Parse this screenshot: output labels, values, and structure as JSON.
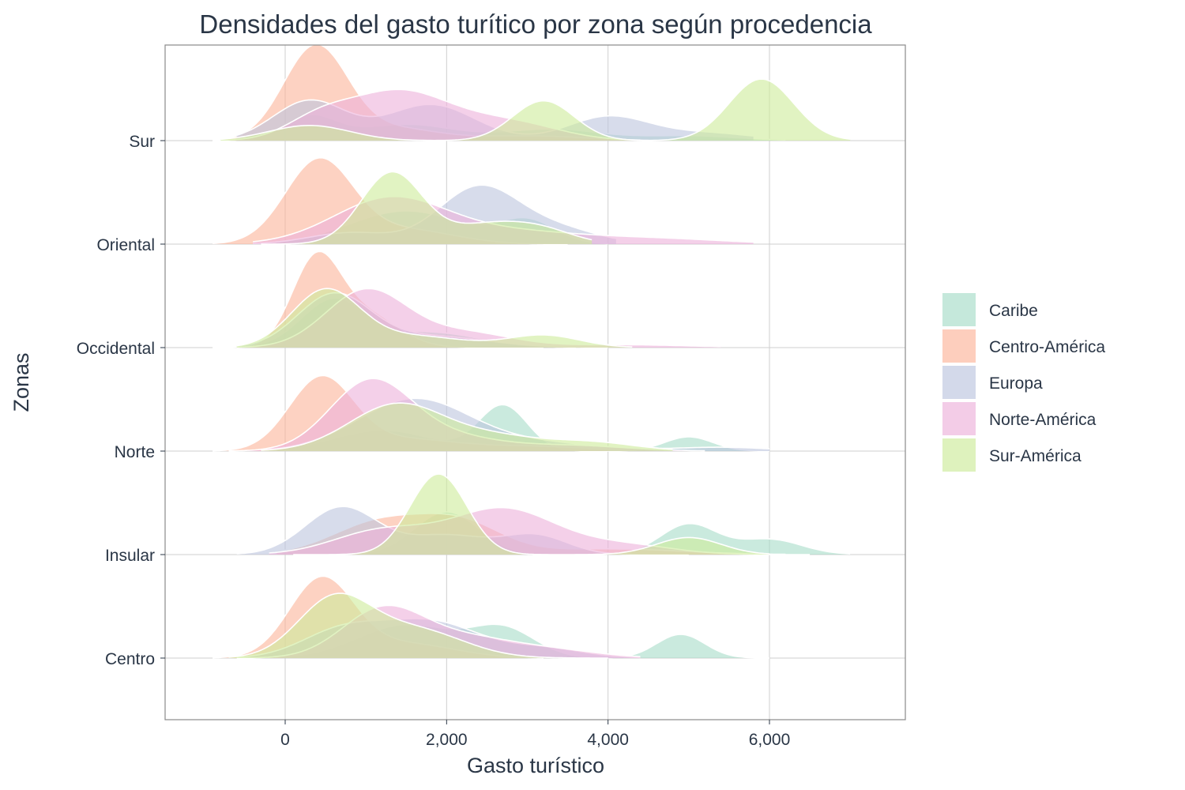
{
  "chart_data": {
    "type": "area",
    "subtype": "ridgeline-density",
    "title": "Densidades del gasto turítico por zona según procedencia",
    "xlabel": "Gasto turístico",
    "ylabel": "Zonas",
    "xlim": [
      -1500,
      7600
    ],
    "xticks": [
      0,
      2000,
      4000,
      6000
    ],
    "xtick_labels": [
      "0",
      "2,000",
      "4,000",
      "6,000"
    ],
    "grid": true,
    "legend_position": "right",
    "zones": [
      "Sur",
      "Oriental",
      "Occidental",
      "Norte",
      "Insular",
      "Centro"
    ],
    "series": [
      {
        "name": "Caribe",
        "color": "#a6dcc8"
      },
      {
        "name": "Centro-América",
        "color": "#fcb49a"
      },
      {
        "name": "Europa",
        "color": "#bcc4de"
      },
      {
        "name": "Norte-América",
        "color": "#edb0da"
      },
      {
        "name": "Sur-América",
        "color": "#cdeb9a"
      }
    ],
    "densities": {
      "Sur": {
        "Caribe": {
          "range": [
            -900,
            6200
          ],
          "peaks": [
            [
              300,
              0.25,
              330
            ],
            [
              1500,
              0.17,
              600
            ],
            [
              3300,
              0.12,
              600
            ],
            [
              5000,
              0.05,
              600
            ]
          ]
        },
        "Centro-América": {
          "range": [
            -900,
            4500
          ],
          "peaks": [
            [
              380,
              1.0,
              400
            ],
            [
              1400,
              0.12,
              500
            ],
            [
              3000,
              0.05,
              700
            ]
          ]
        },
        "Europa": {
          "range": [
            -600,
            5800
          ],
          "peaks": [
            [
              300,
              0.42,
              450
            ],
            [
              1800,
              0.38,
              550
            ],
            [
              4000,
              0.25,
              500
            ],
            [
              5200,
              0.08,
              600
            ]
          ]
        },
        "Norte-América": {
          "range": [
            -900,
            4400
          ],
          "peaks": [
            [
              400,
              0.18,
              400
            ],
            [
              1400,
              0.52,
              650
            ],
            [
              2800,
              0.18,
              600
            ]
          ]
        },
        "Sur-América": {
          "range": [
            -800,
            7000
          ],
          "peaks": [
            [
              300,
              0.16,
              500
            ],
            [
              3200,
              0.42,
              380
            ],
            [
              5900,
              0.65,
              400
            ]
          ]
        }
      },
      "Oriental": {
        "Caribe": {
          "range": [
            -100,
            4000
          ],
          "peaks": [
            [
              1500,
              0.35,
              700
            ],
            [
              3000,
              0.24,
              350
            ]
          ]
        },
        "Centro-América": {
          "range": [
            -900,
            3500
          ],
          "peaks": [
            [
              420,
              0.88,
              420
            ],
            [
              1500,
              0.15,
              600
            ]
          ]
        },
        "Europa": {
          "range": [
            -400,
            4100
          ],
          "peaks": [
            [
              800,
              0.12,
              500
            ],
            [
              2400,
              0.6,
              500
            ],
            [
              3400,
              0.15,
              500
            ]
          ]
        },
        "Norte-América": {
          "range": [
            -400,
            5800
          ],
          "peaks": [
            [
              1300,
              0.48,
              700
            ],
            [
              2800,
              0.12,
              800
            ],
            [
              4500,
              0.06,
              900
            ]
          ]
        },
        "Sur-América": {
          "range": [
            -300,
            3800
          ],
          "peaks": [
            [
              1320,
              0.75,
              380
            ],
            [
              2500,
              0.2,
              500
            ],
            [
              3200,
              0.12,
              400
            ]
          ]
        }
      },
      "Occidental": {
        "Caribe": {
          "range": [
            -600,
            3600
          ],
          "peaks": [
            [
              600,
              0.5,
              400
            ],
            [
              1800,
              0.16,
              600
            ]
          ]
        },
        "Centro-América": {
          "range": [
            -900,
            3200
          ],
          "peaks": [
            [
              380,
              0.9,
              300
            ],
            [
              1000,
              0.35,
              400
            ]
          ]
        },
        "Europa": {
          "range": [
            -600,
            4000
          ],
          "peaks": [
            [
              600,
              0.55,
              450
            ],
            [
              1800,
              0.12,
              700
            ]
          ]
        },
        "Norte-América": {
          "range": [
            -600,
            5400
          ],
          "peaks": [
            [
              1000,
              0.6,
              500
            ],
            [
              2200,
              0.16,
              600
            ],
            [
              4200,
              0.03,
              800
            ]
          ]
        },
        "Sur-América": {
          "range": [
            -600,
            4300
          ],
          "peaks": [
            [
              500,
              0.6,
              420
            ],
            [
              1600,
              0.12,
              600
            ],
            [
              3200,
              0.13,
              450
            ]
          ]
        }
      },
      "Norte": {
        "Caribe": {
          "range": [
            -100,
            6000
          ],
          "peaks": [
            [
              1200,
              0.22,
              600
            ],
            [
              2700,
              0.48,
              300
            ],
            [
              5000,
              0.15,
              300
            ]
          ]
        },
        "Centro-América": {
          "range": [
            -900,
            4000
          ],
          "peaks": [
            [
              450,
              0.77,
              400
            ],
            [
              1500,
              0.12,
              600
            ],
            [
              3000,
              0.05,
              700
            ]
          ]
        },
        "Europa": {
          "range": [
            -200,
            6000
          ],
          "peaks": [
            [
              1600,
              0.55,
              700
            ],
            [
              3200,
              0.08,
              700
            ],
            [
              5400,
              0.04,
              600
            ]
          ]
        },
        "Norte-América": {
          "range": [
            -700,
            5200
          ],
          "peaks": [
            [
              1050,
              0.72,
              500
            ],
            [
              2000,
              0.15,
              600
            ],
            [
              3500,
              0.06,
              700
            ]
          ]
        },
        "Sur-América": {
          "range": [
            -300,
            4800
          ],
          "peaks": [
            [
              1400,
              0.5,
              600
            ],
            [
              2600,
              0.12,
              500
            ],
            [
              3700,
              0.1,
              600
            ]
          ]
        }
      },
      "Insular": {
        "Caribe": {
          "range": [
            100,
            7000
          ],
          "peaks": [
            [
              2000,
              0.45,
              400
            ],
            [
              5000,
              0.32,
              350
            ],
            [
              6000,
              0.16,
              400
            ]
          ]
        },
        "Centro-América": {
          "range": [
            -100,
            6200
          ],
          "peaks": [
            [
              1200,
              0.35,
              600
            ],
            [
              2200,
              0.3,
              500
            ],
            [
              4000,
              0.06,
              900
            ]
          ]
        },
        "Europa": {
          "range": [
            -600,
            5000
          ],
          "peaks": [
            [
              700,
              0.5,
              450
            ],
            [
              2000,
              0.2,
              500
            ],
            [
              3100,
              0.2,
              400
            ]
          ]
        },
        "Norte-América": {
          "range": [
            -200,
            6500
          ],
          "peaks": [
            [
              1200,
              0.25,
              600
            ],
            [
              2700,
              0.48,
              650
            ],
            [
              4200,
              0.1,
              600
            ]
          ]
        },
        "Sur-América": {
          "range": [
            100,
            6000
          ],
          "peaks": [
            [
              1900,
              0.85,
              350
            ],
            [
              5000,
              0.18,
              400
            ]
          ]
        }
      },
      "Centro": {
        "Caribe": {
          "range": [
            -200,
            6000
          ],
          "peaks": [
            [
              1500,
              0.35,
              600
            ],
            [
              2700,
              0.3,
              400
            ],
            [
              4900,
              0.25,
              300
            ]
          ]
        },
        "Centro-America": {
          "range": [
            0,
            0
          ],
          "peaks": []
        },
        "Centro-América": {
          "range": [
            -900,
            3200
          ],
          "peaks": [
            [
              450,
              0.83,
              400
            ],
            [
              1500,
              0.15,
              600
            ]
          ]
        },
        "Europa": {
          "range": [
            -600,
            4400
          ],
          "peaks": [
            [
              700,
              0.28,
              500
            ],
            [
              1800,
              0.38,
              600
            ],
            [
              3200,
              0.1,
              500
            ]
          ]
        },
        "Norte-América": {
          "range": [
            -600,
            4400
          ],
          "peaks": [
            [
              1200,
              0.5,
              500
            ],
            [
              2200,
              0.2,
              600
            ],
            [
              3300,
              0.08,
              600
            ]
          ]
        },
        "Sur-América": {
          "range": [
            -700,
            4000
          ],
          "peaks": [
            [
              600,
              0.6,
              450
            ],
            [
              1600,
              0.3,
              600
            ]
          ]
        }
      }
    }
  }
}
